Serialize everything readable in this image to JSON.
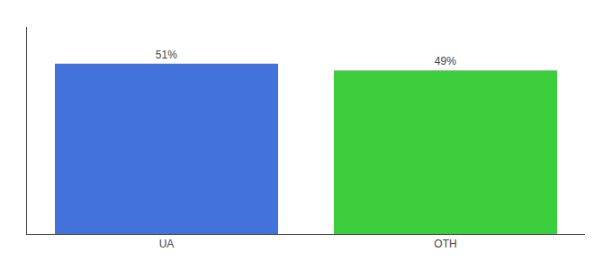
{
  "chart_data": {
    "type": "bar",
    "categories": [
      "UA",
      "OTH"
    ],
    "values": [
      51,
      49
    ],
    "value_labels": [
      "51%",
      "49%"
    ],
    "colors": [
      "#4472db",
      "#3ccd3c"
    ],
    "ylim": [
      0,
      62
    ],
    "data_labels": true,
    "tick_labels": "x",
    "grid": false
  }
}
